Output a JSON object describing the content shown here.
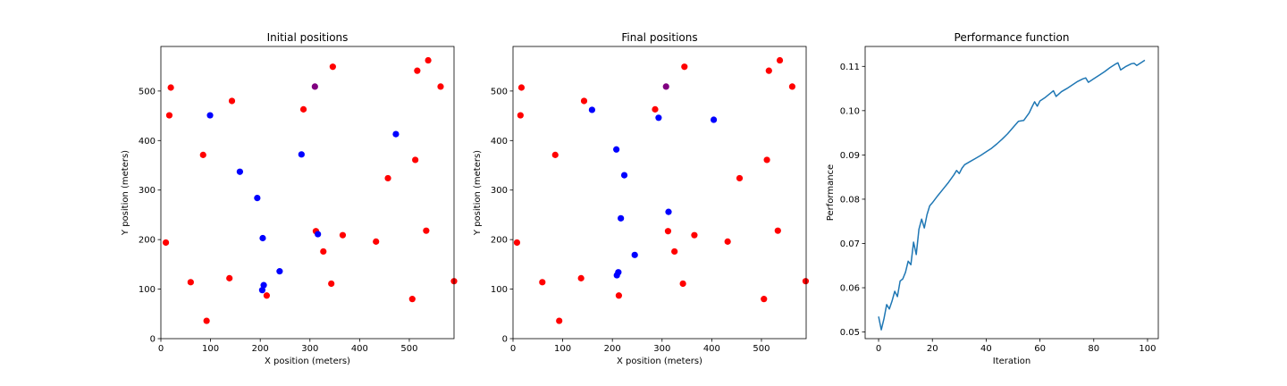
{
  "colors": {
    "red": "#ff0000",
    "blue": "#0000ff",
    "purple": "#800080",
    "line": "#1f77b4"
  },
  "chart_data": [
    {
      "type": "scatter",
      "title": "Initial positions",
      "xlabel": "X position (meters)",
      "ylabel": "Y position (meters)",
      "xlim": [
        0,
        590
      ],
      "ylim": [
        0,
        590
      ],
      "xticks": [
        0,
        100,
        200,
        300,
        400,
        500
      ],
      "yticks": [
        0,
        100,
        200,
        300,
        400,
        500
      ],
      "grid": false,
      "series": [
        {
          "color": "#ff0000",
          "points": [
            [
              20,
              507
            ],
            [
              17,
              451
            ],
            [
              10,
              194
            ],
            [
              60,
              114
            ],
            [
              85,
              371
            ],
            [
              92,
              36
            ],
            [
              138,
              122
            ],
            [
              143,
              480
            ],
            [
              213,
              87
            ],
            [
              287,
              463
            ],
            [
              312,
              217
            ],
            [
              327,
              176
            ],
            [
              343,
              111
            ],
            [
              346,
              549
            ],
            [
              366,
              209
            ],
            [
              433,
              196
            ],
            [
              457,
              324
            ],
            [
              506,
              80
            ],
            [
              512,
              361
            ],
            [
              516,
              541
            ],
            [
              534,
              218
            ],
            [
              538,
              562
            ],
            [
              563,
              509
            ],
            [
              590,
              116
            ]
          ]
        },
        {
          "color": "#0000ff",
          "points": [
            [
              99,
              451
            ],
            [
              159,
              337
            ],
            [
              194,
              284
            ],
            [
              205,
              203
            ],
            [
              204,
              98
            ],
            [
              207,
              108
            ],
            [
              239,
              136
            ],
            [
              283,
              372
            ],
            [
              316,
              211
            ],
            [
              473,
              413
            ]
          ]
        },
        {
          "color": "#800080",
          "points": [
            [
              310,
              509
            ]
          ]
        }
      ]
    },
    {
      "type": "scatter",
      "title": "Final positions",
      "xlabel": "X position (meters)",
      "ylabel": "Y position (meters)",
      "xlim": [
        0,
        590
      ],
      "ylim": [
        0,
        590
      ],
      "xticks": [
        0,
        100,
        200,
        300,
        400,
        500
      ],
      "yticks": [
        0,
        100,
        200,
        300,
        400,
        500
      ],
      "grid": false,
      "series": [
        {
          "color": "#ff0000",
          "points": [
            [
              17,
              507
            ],
            [
              15,
              451
            ],
            [
              8,
              194
            ],
            [
              59,
              114
            ],
            [
              85,
              371
            ],
            [
              93,
              36
            ],
            [
              137,
              122
            ],
            [
              143,
              480
            ],
            [
              213,
              87
            ],
            [
              286,
              463
            ],
            [
              312,
              217
            ],
            [
              325,
              176
            ],
            [
              342,
              111
            ],
            [
              345,
              549
            ],
            [
              365,
              209
            ],
            [
              432,
              196
            ],
            [
              456,
              324
            ],
            [
              505,
              80
            ],
            [
              511,
              361
            ],
            [
              515,
              541
            ],
            [
              533,
              218
            ],
            [
              537,
              562
            ],
            [
              562,
              509
            ],
            [
              589,
              116
            ]
          ]
        },
        {
          "color": "#0000ff",
          "points": [
            [
              159,
              462
            ],
            [
              208,
              382
            ],
            [
              217,
              243
            ],
            [
              224,
              330
            ],
            [
              209,
              128
            ],
            [
              212,
              134
            ],
            [
              245,
              169
            ],
            [
              293,
              446
            ],
            [
              313,
              256
            ],
            [
              404,
              442
            ]
          ]
        },
        {
          "color": "#800080",
          "points": [
            [
              308,
              509
            ]
          ]
        }
      ]
    },
    {
      "type": "line",
      "title": "Performance function",
      "xlabel": "Iteration",
      "ylabel": "Performance",
      "xlim": [
        -5,
        104
      ],
      "ylim": [
        0.0485,
        0.1145
      ],
      "xticks": [
        0,
        20,
        40,
        60,
        80,
        100
      ],
      "yticks": [
        0.05,
        0.06,
        0.07,
        0.08,
        0.09,
        0.1,
        0.11
      ],
      "ytick_labels": [
        "0.05",
        "0.06",
        "0.07",
        "0.08",
        "0.09",
        "0.10",
        "0.11"
      ],
      "grid": false,
      "series": [
        {
          "color": "#1f77b4",
          "x": [
            0,
            1,
            2,
            3,
            4,
            5,
            6,
            7,
            8,
            9,
            10,
            11,
            12,
            13,
            14,
            15,
            16,
            17,
            18,
            19,
            20,
            22,
            24,
            26,
            28,
            29,
            30,
            31,
            32,
            34,
            36,
            38,
            40,
            42,
            44,
            46,
            48,
            50,
            52,
            54,
            56,
            57,
            58,
            59,
            60,
            62,
            64,
            65,
            66,
            68,
            70,
            72,
            74,
            76,
            77,
            78,
            80,
            82,
            84,
            86,
            88,
            89,
            90,
            92,
            94,
            95,
            96,
            98,
            99
          ],
          "y": [
            0.0535,
            0.0505,
            0.053,
            0.0562,
            0.0552,
            0.057,
            0.0592,
            0.058,
            0.0615,
            0.062,
            0.0635,
            0.066,
            0.0652,
            0.0703,
            0.0675,
            0.0732,
            0.0755,
            0.0735,
            0.0765,
            0.0785,
            0.0792,
            0.0808,
            0.0823,
            0.0838,
            0.0855,
            0.0865,
            0.0858,
            0.087,
            0.0878,
            0.0885,
            0.0892,
            0.0899,
            0.0907,
            0.0915,
            0.0925,
            0.0936,
            0.0948,
            0.0962,
            0.0976,
            0.0978,
            0.0995,
            0.1008,
            0.102,
            0.101,
            0.1022,
            0.103,
            0.104,
            0.1045,
            0.1032,
            0.1043,
            0.105,
            0.1058,
            0.1066,
            0.1072,
            0.1074,
            0.1064,
            0.1072,
            0.108,
            0.1088,
            0.1097,
            0.1105,
            0.1108,
            0.1092,
            0.11,
            0.1106,
            0.1107,
            0.1102,
            0.111,
            0.1114
          ]
        }
      ]
    }
  ]
}
